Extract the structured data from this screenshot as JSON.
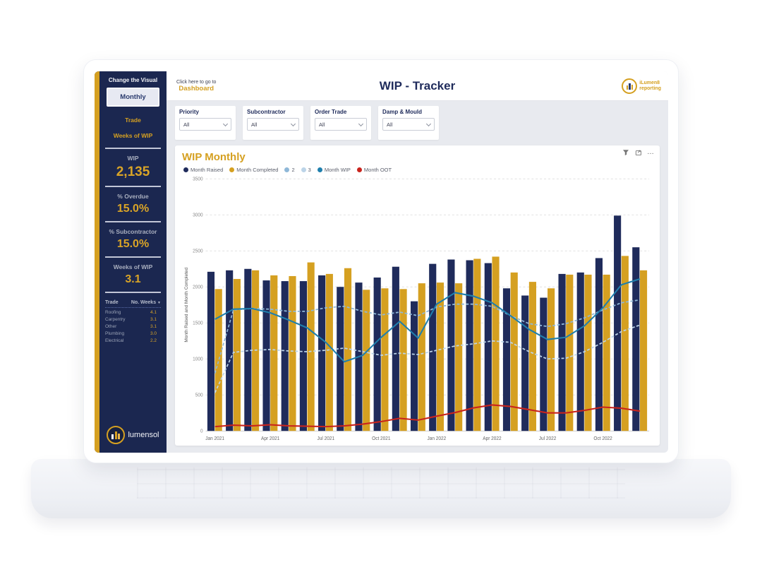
{
  "header": {
    "nav_hint": "Click here to go to",
    "nav_link": "Dashboard",
    "title": "WIP - Tracker",
    "brand": {
      "line1": "iLumen8",
      "line2": "reporting"
    }
  },
  "sidebar": {
    "header": "Change the Visual",
    "nav": [
      {
        "label": "Monthly"
      },
      {
        "label": "Trade"
      },
      {
        "label": "Weeks of WIP"
      }
    ],
    "kpis": [
      {
        "label": "WIP",
        "value": "2,135"
      },
      {
        "label": "% Overdue",
        "value": "15.0%"
      },
      {
        "label": "% Subcontractor",
        "value": "15.0%"
      },
      {
        "label": "Weeks of WIP",
        "value": "3.1"
      }
    ],
    "trade_table": {
      "columns": [
        "Trade",
        "No. Weeks"
      ],
      "rows": [
        [
          "Roofing",
          "4.1"
        ],
        [
          "Carpentry",
          "3.1"
        ],
        [
          "Other",
          "3.1"
        ],
        [
          "Plumbing",
          "3.0"
        ],
        [
          "Electrical",
          "2.2"
        ]
      ]
    },
    "logo_text": "lumensol"
  },
  "filters": [
    {
      "label": "Priority",
      "value": "All"
    },
    {
      "label": "Subcontractor",
      "value": "All"
    },
    {
      "label": "Order Trade",
      "value": "All"
    },
    {
      "label": "Damp & Mould",
      "value": "All"
    }
  ],
  "panel": {
    "title": "WIP Monthly",
    "more_options": "…"
  },
  "colors": {
    "navy": "#1F2B5B",
    "gold": "#D5A021",
    "teal": "#1F7FAD",
    "light_blue_2": "#8FB8D8",
    "light_blue_3": "#BCD4E8",
    "red": "#C9241D",
    "sidebar_bg": "#1B2750",
    "main_bg": "#E8EAEF"
  },
  "chart_data": {
    "type": "bar",
    "title": "WIP Monthly",
    "xlabel": "",
    "ylabel": "Month Raised and Month Completed",
    "ylim": [
      0,
      3500
    ],
    "ytick_step": 500,
    "grid": "dashed-horizontal",
    "legend_position": "top",
    "x": [
      "Jan 2021",
      "Feb 2021",
      "Mar 2021",
      "Apr 2021",
      "May 2021",
      "Jun 2021",
      "Jul 2021",
      "Aug 2021",
      "Sep 2021",
      "Oct 2021",
      "Nov 2021",
      "Dec 2021",
      "Jan 2022",
      "Feb 2022",
      "Mar 2022",
      "Apr 2022",
      "May 2022",
      "Jun 2022",
      "Jul 2022",
      "Aug 2022",
      "Sep 2022",
      "Oct 2022",
      "Nov 2022",
      "Dec 2022"
    ],
    "xtick_every": 3,
    "bar_series": [
      {
        "name": "Month Raised",
        "color": "#1F2B5B",
        "values": [
          2210,
          2230,
          2250,
          2090,
          2080,
          2080,
          2160,
          2000,
          2060,
          2130,
          2280,
          1800,
          2320,
          2380,
          2370,
          2330,
          1980,
          1880,
          1850,
          2180,
          2200,
          2400,
          2990,
          2550
        ]
      },
      {
        "name": "Month Completed",
        "color": "#D5A021",
        "values": [
          1970,
          2110,
          2230,
          2160,
          2150,
          2340,
          2180,
          2260,
          1960,
          1980,
          1970,
          2050,
          2060,
          2050,
          2390,
          2420,
          2200,
          2070,
          1980,
          2170,
          2170,
          2170,
          2430,
          2230
        ]
      }
    ],
    "line_series": [
      {
        "name": "2",
        "color": "#8FB8D8",
        "dash": true,
        "values": [
          800,
          1680,
          1700,
          1690,
          1660,
          1660,
          1710,
          1730,
          1660,
          1610,
          1650,
          1600,
          1720,
          1760,
          1760,
          1730,
          1600,
          1490,
          1450,
          1490,
          1570,
          1680,
          1780,
          1820
        ]
      },
      {
        "name": "3",
        "color": "#BCD4E8",
        "dash": true,
        "values": [
          530,
          1090,
          1120,
          1130,
          1110,
          1100,
          1120,
          1150,
          1100,
          1050,
          1080,
          1060,
          1120,
          1180,
          1210,
          1250,
          1230,
          1100,
          1000,
          1010,
          1100,
          1230,
          1380,
          1470
        ]
      },
      {
        "name": "Month WIP",
        "color": "#1F7FAD",
        "dash": false,
        "values": [
          1550,
          1690,
          1700,
          1640,
          1540,
          1430,
          1230,
          960,
          1050,
          1300,
          1520,
          1290,
          1760,
          1920,
          1870,
          1780,
          1600,
          1410,
          1270,
          1300,
          1460,
          1710,
          2030,
          2110
        ]
      },
      {
        "name": "Month OOT",
        "color": "#C9241D",
        "dash": false,
        "values": [
          60,
          80,
          70,
          85,
          70,
          65,
          60,
          70,
          95,
          130,
          175,
          150,
          205,
          255,
          320,
          360,
          340,
          295,
          250,
          250,
          285,
          330,
          315,
          275
        ]
      }
    ],
    "legend": [
      {
        "label": "Month Raised",
        "color": "#1F2B5B"
      },
      {
        "label": "Month Completed",
        "color": "#D5A021"
      },
      {
        "label": "2",
        "color": "#8FB8D8"
      },
      {
        "label": "3",
        "color": "#BCD4E8"
      },
      {
        "label": "Month WIP",
        "color": "#1F7FAD"
      },
      {
        "label": "Month OOT",
        "color": "#C9241D"
      }
    ]
  }
}
